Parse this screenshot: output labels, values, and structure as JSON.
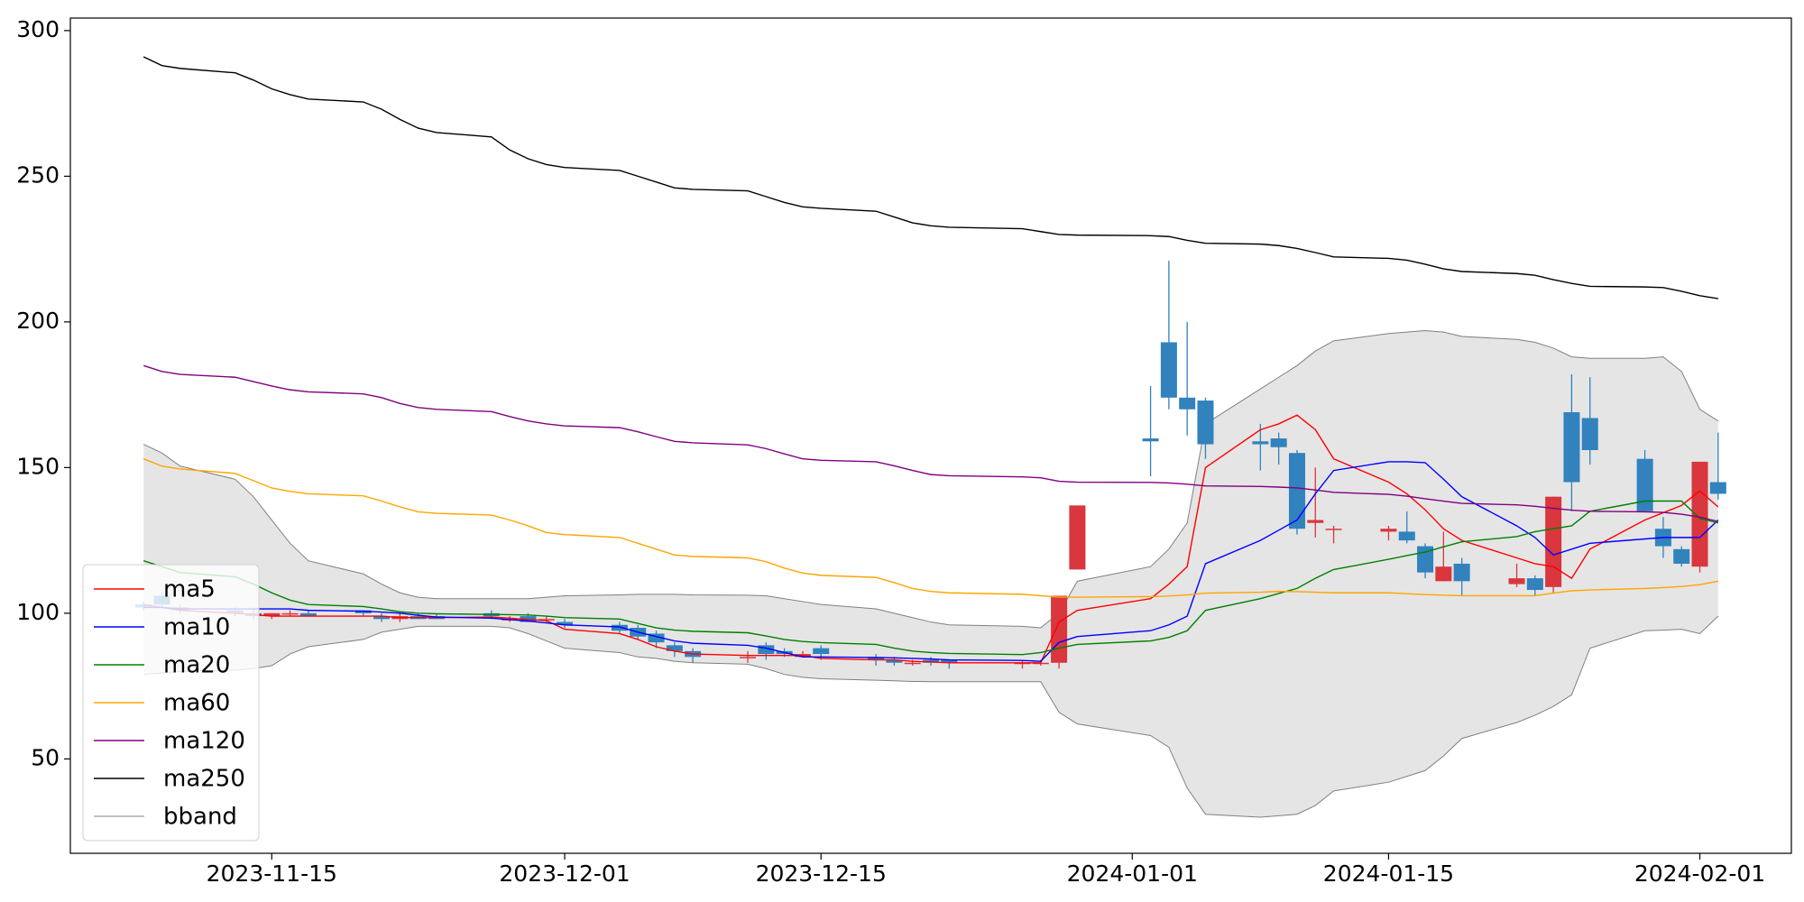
{
  "chart_data": {
    "type": "candlestick",
    "x": [
      "2023-11-08",
      "2023-11-09",
      "2023-11-10",
      "2023-11-13",
      "2023-11-14",
      "2023-11-15",
      "2023-11-16",
      "2023-11-17",
      "2023-11-20",
      "2023-11-21",
      "2023-11-22",
      "2023-11-23",
      "2023-11-24",
      "2023-11-27",
      "2023-11-28",
      "2023-11-29",
      "2023-11-30",
      "2023-12-01",
      "2023-12-04",
      "2023-12-05",
      "2023-12-06",
      "2023-12-07",
      "2023-12-08",
      "2023-12-11",
      "2023-12-12",
      "2023-12-13",
      "2023-12-14",
      "2023-12-15",
      "2023-12-18",
      "2023-12-19",
      "2023-12-20",
      "2023-12-21",
      "2023-12-22",
      "2023-12-26",
      "2023-12-27",
      "2023-12-28",
      "2023-12-29",
      "2024-01-02",
      "2024-01-03",
      "2024-01-04",
      "2024-01-05",
      "2024-01-08",
      "2024-01-09",
      "2024-01-10",
      "2024-01-11",
      "2024-01-12",
      "2024-01-15",
      "2024-01-16",
      "2024-01-17",
      "2024-01-18",
      "2024-01-19",
      "2024-01-22",
      "2024-01-23",
      "2024-01-24",
      "2024-01-25",
      "2024-01-26",
      "2024-01-29",
      "2024-01-30",
      "2024-01-31",
      "2024-02-01",
      "2024-02-02"
    ],
    "open": [
      103,
      106,
      102,
      101,
      100,
      99,
      100,
      100,
      101,
      99,
      98,
      99,
      99,
      100,
      98,
      99,
      98,
      97,
      96,
      95,
      93,
      89,
      87,
      85,
      89,
      87,
      85,
      88,
      85,
      84,
      83,
      84,
      84,
      83,
      83,
      83,
      115,
      160,
      193,
      174,
      173,
      159,
      160,
      155,
      131,
      129,
      128,
      128,
      123,
      111,
      117,
      110,
      112,
      109,
      169,
      167,
      153,
      129,
      122,
      116,
      145
    ],
    "high": [
      104,
      107,
      103,
      102,
      102,
      100,
      101,
      101,
      101,
      100,
      100,
      100,
      100,
      101,
      99,
      100,
      99,
      98,
      97,
      96,
      94,
      90,
      88,
      87,
      90,
      88,
      87,
      89,
      86,
      85,
      84,
      85,
      84,
      84,
      84,
      106,
      137,
      178,
      221,
      200,
      174,
      165,
      162,
      156,
      150,
      130,
      130,
      135,
      124,
      128,
      119,
      117,
      113,
      140,
      182,
      181,
      156,
      133,
      123,
      152,
      162
    ],
    "low": [
      101,
      102,
      100,
      99,
      98,
      98,
      99,
      99,
      99,
      97,
      97,
      98,
      98,
      98,
      97,
      97,
      97,
      95,
      93,
      91,
      88,
      85,
      83,
      83,
      84,
      85,
      85,
      84,
      82,
      82,
      82,
      82,
      81,
      81,
      82,
      81,
      115,
      147,
      170,
      161,
      153,
      149,
      151,
      127,
      126,
      124,
      125,
      124,
      112,
      111,
      106,
      109,
      106,
      107,
      135,
      151,
      135,
      119,
      116,
      114,
      139
    ],
    "close": [
      102,
      103,
      101,
      100,
      99,
      100,
      100,
      99,
      100,
      98,
      99,
      98,
      98,
      99,
      98,
      97,
      98,
      96,
      94,
      92,
      90,
      87,
      85,
      85,
      86,
      86,
      86,
      86,
      84,
      83,
      83,
      83,
      83,
      83,
      83,
      106,
      137,
      159,
      174,
      170,
      158,
      158,
      157,
      129,
      132,
      129,
      129,
      125,
      114,
      116,
      111,
      112,
      108,
      140,
      145,
      156,
      135,
      123,
      117,
      152,
      141
    ],
    "up_color": "#d9363e",
    "down_color": "#3182bd",
    "series": [
      {
        "name": "ma5",
        "color": "red",
        "values": [
          103,
          102,
          101,
          100,
          99.5,
          99,
          99,
          99,
          99,
          99,
          98.5,
          98.5,
          98.5,
          98.7,
          98.3,
          97.8,
          97.5,
          94.5,
          93,
          91,
          88.5,
          87,
          86,
          85.5,
          85.5,
          85.5,
          85.5,
          84.5,
          84,
          84,
          83.5,
          83.3,
          83,
          83,
          83,
          97,
          101,
          105,
          110,
          116,
          150,
          163,
          165,
          168,
          163,
          153,
          145,
          141,
          135.5,
          129,
          125,
          119,
          117,
          116,
          112,
          122,
          132,
          134.5,
          137,
          142,
          136.5
        ]
      },
      {
        "name": "ma10",
        "color": "blue",
        "values": [
          102,
          102,
          101.5,
          101.5,
          101.5,
          101.5,
          101.5,
          101,
          100.7,
          100.4,
          100,
          99.3,
          98.7,
          98.3,
          97.8,
          97.3,
          96.7,
          96,
          95.3,
          93.5,
          92,
          90.5,
          89.7,
          89,
          88,
          86.5,
          85,
          85,
          84.8,
          84.7,
          84.5,
          84.3,
          84,
          83.8,
          83.5,
          90,
          92,
          94,
          96,
          99,
          117,
          125,
          128.5,
          132,
          141,
          149,
          152,
          152,
          151.7,
          146,
          140,
          130,
          126,
          120,
          122,
          124,
          125.5,
          126,
          126,
          126,
          132
        ]
      },
      {
        "name": "ma20",
        "color": "green",
        "values": [
          118,
          116,
          114,
          112.5,
          110,
          107,
          104.5,
          103,
          102.3,
          101.5,
          100.5,
          100,
          99.8,
          99.6,
          99.5,
          99.4,
          99,
          98.5,
          98,
          96.5,
          95,
          94.2,
          93.8,
          93.3,
          92.2,
          91,
          90.3,
          89.9,
          89.3,
          88,
          87,
          86.5,
          86.2,
          85.8,
          86.5,
          88,
          89.3,
          90.5,
          91.7,
          94,
          101,
          105,
          106.8,
          108.5,
          112,
          115,
          118.5,
          119.8,
          121,
          122.8,
          124.5,
          126.3,
          128,
          129,
          130,
          135,
          138.5,
          138.5,
          138.5,
          132.5,
          131
        ]
      },
      {
        "name": "ma60",
        "color": "orange",
        "values": [
          153,
          150.5,
          149.5,
          148,
          145.5,
          143,
          141.8,
          141,
          140.3,
          138.5,
          136.5,
          134.8,
          134.3,
          133.7,
          132,
          130,
          127.7,
          127,
          126,
          124,
          122,
          120,
          119.5,
          119,
          117.7,
          115.5,
          113.8,
          113,
          112.3,
          110.5,
          108.5,
          107.5,
          107,
          106.5,
          106,
          105.5,
          105.5,
          105.7,
          105.9,
          106.3,
          106.9,
          107.2,
          107.5,
          107.4,
          107.2,
          107,
          107,
          106.7,
          106.4,
          106.2,
          106,
          106,
          106,
          106.9,
          107.7,
          108,
          108.5,
          108.8,
          109.2,
          109.8,
          111
        ]
      },
      {
        "name": "ma120",
        "color": "purple",
        "values": [
          185,
          183,
          182,
          181,
          179.5,
          178,
          176.7,
          176,
          175.3,
          174,
          172,
          170.6,
          170,
          169.2,
          167.5,
          166,
          165,
          164.3,
          163.7,
          162.3,
          160.6,
          159,
          158.5,
          157.8,
          156.5,
          154.7,
          153,
          152.5,
          152,
          150.6,
          149,
          147.6,
          147.2,
          146.8,
          146.5,
          145.3,
          145,
          144.9,
          144.7,
          144.3,
          143.7,
          143.5,
          143.3,
          143,
          142.3,
          141.5,
          140.8,
          140.2,
          139.3,
          138.5,
          137.7,
          137.2,
          136.7,
          136,
          135.4,
          135,
          134.8,
          134.6,
          134,
          133,
          131.5
        ]
      },
      {
        "name": "ma250",
        "color": "black",
        "values": [
          291,
          288,
          287,
          285.5,
          283,
          280,
          278,
          276.5,
          275.5,
          273,
          269.5,
          266.5,
          265,
          263.5,
          259,
          256,
          254,
          253,
          252,
          250,
          248,
          246,
          245.5,
          245,
          243,
          241,
          239.5,
          239,
          238,
          236,
          234,
          233,
          232.5,
          232,
          231,
          230,
          229.8,
          229.6,
          229.3,
          228,
          227,
          226.7,
          226.2,
          225.2,
          223.8,
          222.3,
          221.8,
          221.2,
          219.8,
          218.2,
          217.3,
          216.6,
          216,
          214.5,
          213.2,
          212.2,
          212,
          211.8,
          210.5,
          209,
          208
        ]
      }
    ],
    "bband": {
      "name": "bband",
      "color": "#808080",
      "fill": "#e5e5e5",
      "upper": [
        158,
        155,
        150.5,
        146,
        140,
        132,
        124,
        118,
        113.5,
        110,
        107,
        105.5,
        105,
        105,
        105,
        105,
        105.5,
        106,
        106.3,
        106.5,
        106.5,
        106.5,
        106.3,
        106.2,
        106,
        105,
        104,
        103,
        101.5,
        100,
        98.5,
        97,
        96,
        95.5,
        95,
        100,
        111,
        116,
        122,
        131,
        165,
        177,
        181,
        185,
        190,
        193.5,
        196,
        196.5,
        197,
        196.5,
        195,
        194,
        193,
        191,
        188,
        187.5,
        187.5,
        188,
        183,
        170,
        166
      ],
      "lower": [
        79,
        79.5,
        80,
        80.5,
        81,
        82,
        86,
        88.5,
        91,
        93.5,
        94.5,
        95.5,
        95.5,
        95.5,
        95,
        93,
        90.5,
        88,
        86.5,
        85,
        84.5,
        83.5,
        83,
        82.5,
        81,
        79,
        78,
        77.5,
        77,
        76.8,
        76.6,
        76.5,
        76.5,
        76.5,
        76.5,
        66,
        62,
        58,
        54,
        40,
        31,
        30,
        30.5,
        31,
        34,
        39,
        42,
        44,
        46,
        51,
        57,
        62.5,
        65,
        68,
        72,
        88,
        94,
        94.2,
        94.5,
        93,
        99
      ]
    },
    "xlim": [
      "2023-11-04",
      "2024-02-06"
    ],
    "xticks": [
      "2023-11-15",
      "2023-12-01",
      "2023-12-15",
      "2024-01-01",
      "2024-01-15",
      "2024-02-01"
    ],
    "ylim": [
      17.6,
      304.3
    ],
    "yticks": [
      50,
      100,
      150,
      200,
      250,
      300
    ],
    "legend": "lower left"
  }
}
